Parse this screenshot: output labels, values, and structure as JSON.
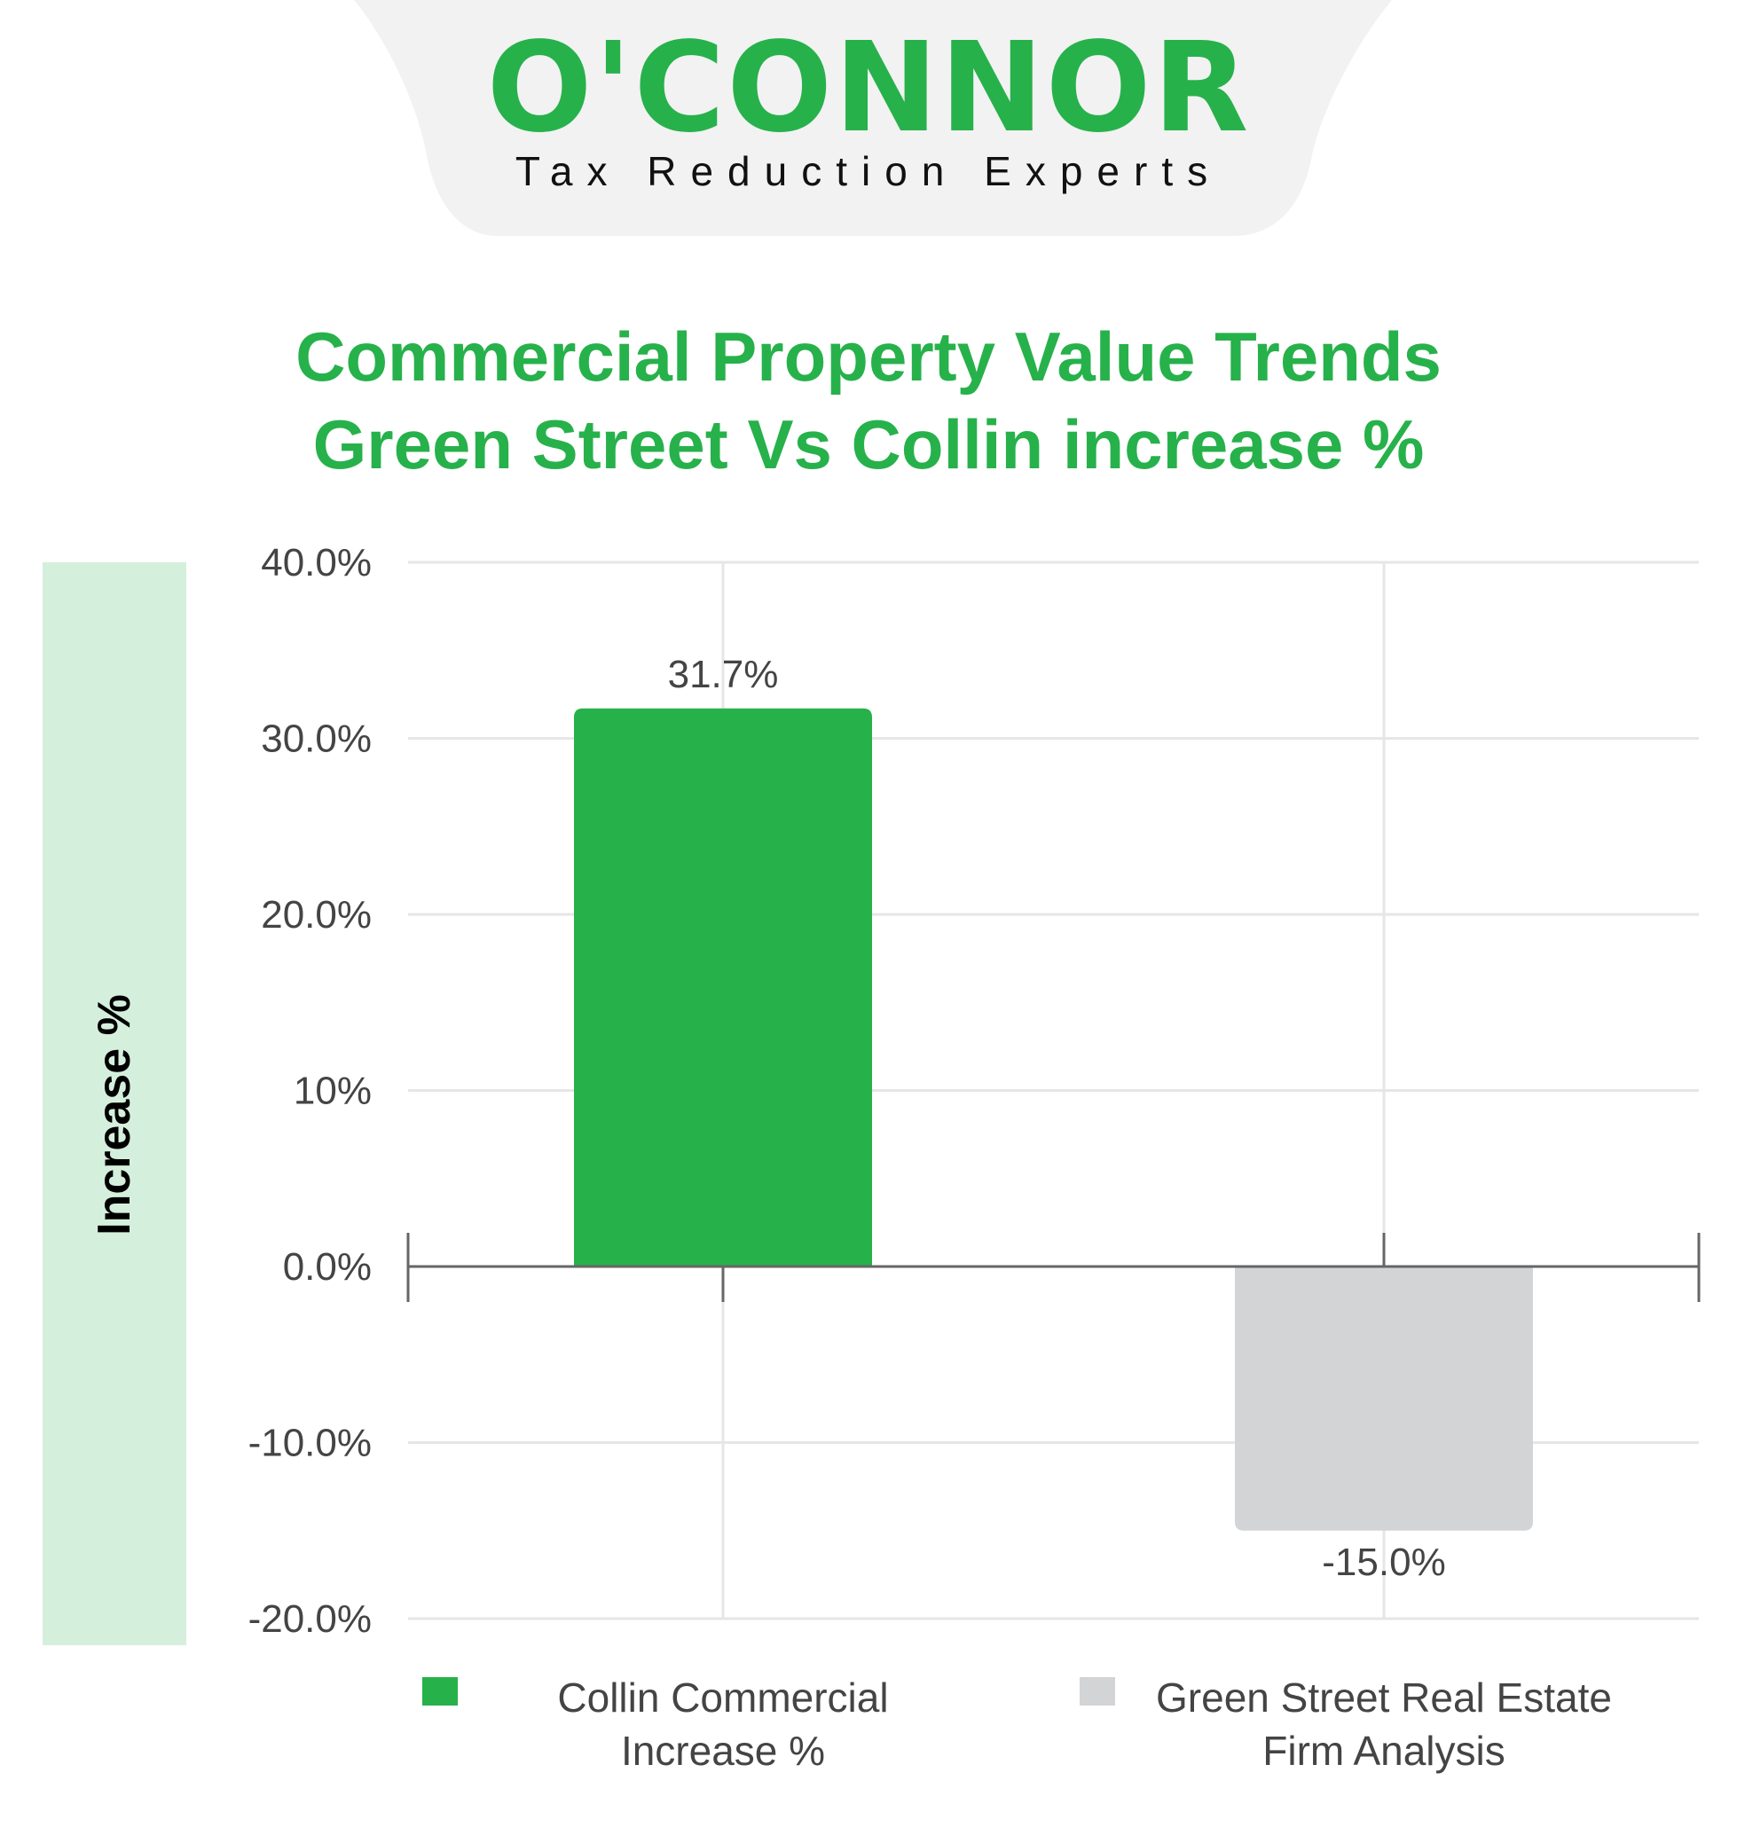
{
  "brand": {
    "name": "O'CONNOR",
    "tagline": "Tax Reduction Experts",
    "color": "#27b14b"
  },
  "title": {
    "line1": "Commercial Property Value Trends",
    "line2": "Green Street Vs Collin increase %"
  },
  "chart_data": {
    "type": "bar",
    "title": "Commercial Property Value Trends Green Street Vs Collin increase %",
    "ylabel": "Increase %",
    "xlabel": "",
    "ylim": [
      -20,
      40
    ],
    "yticks": [
      40,
      30,
      20,
      10,
      0,
      -10,
      -20
    ],
    "ytick_labels": [
      "40.0%",
      "30.0%",
      "20.0%",
      "10%",
      "0.0%",
      "-10.0%",
      "-20.0%"
    ],
    "grid": true,
    "legend_position": "bottom",
    "series": [
      {
        "name": "Collin Commercial Increase %",
        "legend_lines": [
          "Collin Commercial",
          "Increase %"
        ],
        "value": 31.7,
        "label": "31.7%",
        "color": "#27b14b"
      },
      {
        "name": "Green Street Real Estate Firm Analysis",
        "legend_lines": [
          "Green Street Real Estate",
          "Firm Analysis"
        ],
        "value": -15.0,
        "label": "-15.0%",
        "color": "#d3d4d6"
      }
    ]
  },
  "colors": {
    "panel": "#d5efdd",
    "grid": "#e6e6e6",
    "axis": "#666666",
    "tick_text": "#444444",
    "header_bg": "#f2f2f2"
  }
}
